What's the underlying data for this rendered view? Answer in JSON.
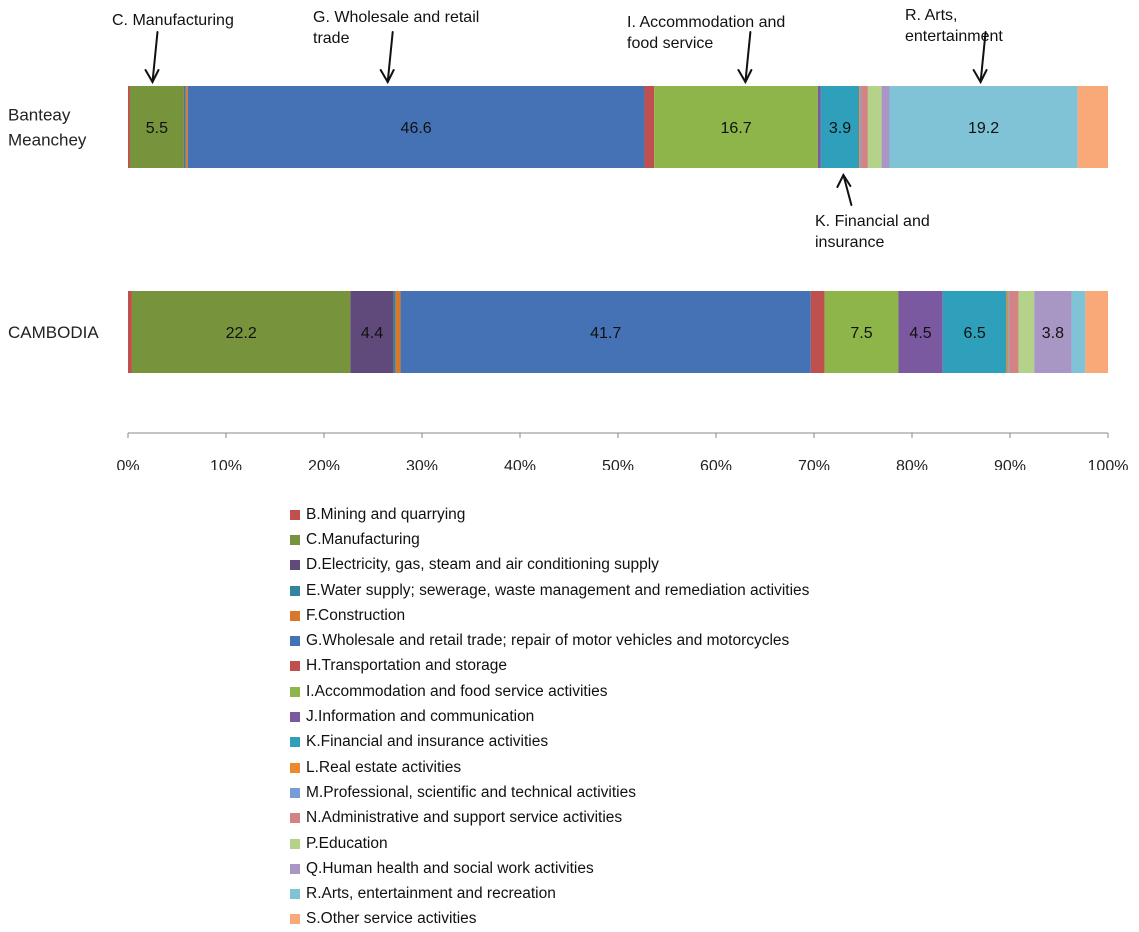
{
  "chart_data": {
    "type": "bar",
    "orientation": "horizontal",
    "stacked": "percent",
    "categories": [
      "Banteay Meanchey",
      "CAMBODIA"
    ],
    "x_ticks": [
      "0%",
      "10%",
      "20%",
      "30%",
      "40%",
      "50%",
      "60%",
      "70%",
      "80%",
      "90%",
      "100%"
    ],
    "xlim": [
      0,
      100
    ],
    "grid": false,
    "legend_position": "bottom",
    "series": [
      {
        "name": "B.Mining and quarrying",
        "color": "#C0504D",
        "values": [
          0.2,
          0.4
        ],
        "labels": [
          "",
          ""
        ]
      },
      {
        "name": "C.Manufacturing",
        "color": "#77933C",
        "values": [
          5.5,
          22.2
        ],
        "labels": [
          "5.5",
          "22.2"
        ]
      },
      {
        "name": "D.Electricity, gas, steam and air conditioning supply",
        "color": "#604A7B",
        "values": [
          0.1,
          4.4
        ],
        "labels": [
          "",
          "4.4"
        ]
      },
      {
        "name": "E.Water supply; sewerage, waste management and remediation activities",
        "color": "#31859C",
        "values": [
          0.1,
          0.2
        ],
        "labels": [
          "",
          ""
        ]
      },
      {
        "name": "F.Construction",
        "color": "#D9782B",
        "values": [
          0.2,
          0.5
        ],
        "labels": [
          "",
          ""
        ]
      },
      {
        "name": "G.Wholesale and retail trade; repair of motor vehicles and motorcycles",
        "color": "#4472B5",
        "values": [
          46.6,
          41.7
        ],
        "labels": [
          "46.6",
          "41.7"
        ]
      },
      {
        "name": "H.Transportation and storage",
        "color": "#C0504D",
        "values": [
          1.0,
          1.4
        ],
        "labels": [
          "",
          ""
        ]
      },
      {
        "name": "I.Accommodation and food service activities",
        "color": "#8DB54A",
        "values": [
          16.7,
          7.5
        ],
        "labels": [
          "16.7",
          "7.5"
        ]
      },
      {
        "name": "J.Information and communication",
        "color": "#7A59A0",
        "values": [
          0.3,
          4.5
        ],
        "labels": [
          "",
          "4.5"
        ]
      },
      {
        "name": "K.Financial and insurance activities",
        "color": "#2FA0BB",
        "values": [
          3.9,
          6.5
        ],
        "labels": [
          "3.9",
          "6.5"
        ]
      },
      {
        "name": "L.Real estate activities",
        "color": "#F0882C",
        "values": [
          0.1,
          0.2
        ],
        "labels": [
          "",
          ""
        ]
      },
      {
        "name": "M.Professional, scientific and technical activities",
        "color": "#7A9CD6",
        "values": [
          0.1,
          0.1
        ],
        "labels": [
          "",
          ""
        ]
      },
      {
        "name": "N.Administrative and support service activities",
        "color": "#D38383",
        "values": [
          0.7,
          0.9
        ],
        "labels": [
          "",
          ""
        ]
      },
      {
        "name": "P.Education",
        "color": "#B5D28A",
        "values": [
          1.4,
          1.6
        ],
        "labels": [
          "",
          ""
        ]
      },
      {
        "name": "Q.Human health and social work activities",
        "color": "#A896C5",
        "values": [
          0.8,
          3.8
        ],
        "labels": [
          "",
          "3.8"
        ]
      },
      {
        "name": "R.Arts, entertainment and recreation",
        "color": "#80C3D6",
        "values": [
          19.2,
          1.4
        ],
        "labels": [
          "19.2",
          ""
        ]
      },
      {
        "name": "S.Other service activities",
        "color": "#F9A878",
        "values": [
          3.1,
          2.3
        ],
        "labels": [
          "",
          ""
        ]
      }
    ],
    "category_labels": [
      "Banteay\nMeanchey",
      "CAMBODIA"
    ],
    "annotations": [
      {
        "text": "C. Manufacturing",
        "points_to_category": "Banteay Meanchey",
        "points_to_x": 2.5,
        "side": "above"
      },
      {
        "text": "G. Wholesale and retail\ntrade",
        "points_to_category": "Banteay Meanchey",
        "points_to_x": 26.5,
        "side": "above"
      },
      {
        "text": "I. Accommodation and\nfood service",
        "points_to_category": "Banteay Meanchey",
        "points_to_x": 63.0,
        "side": "above"
      },
      {
        "text": "R. Arts,\nentertainment",
        "points_to_category": "Banteay Meanchey",
        "points_to_x": 87.0,
        "side": "above"
      },
      {
        "text": "K. Financial and\ninsurance",
        "points_to_category": "Banteay Meanchey",
        "points_to_x": 73.0,
        "side": "below"
      }
    ]
  }
}
